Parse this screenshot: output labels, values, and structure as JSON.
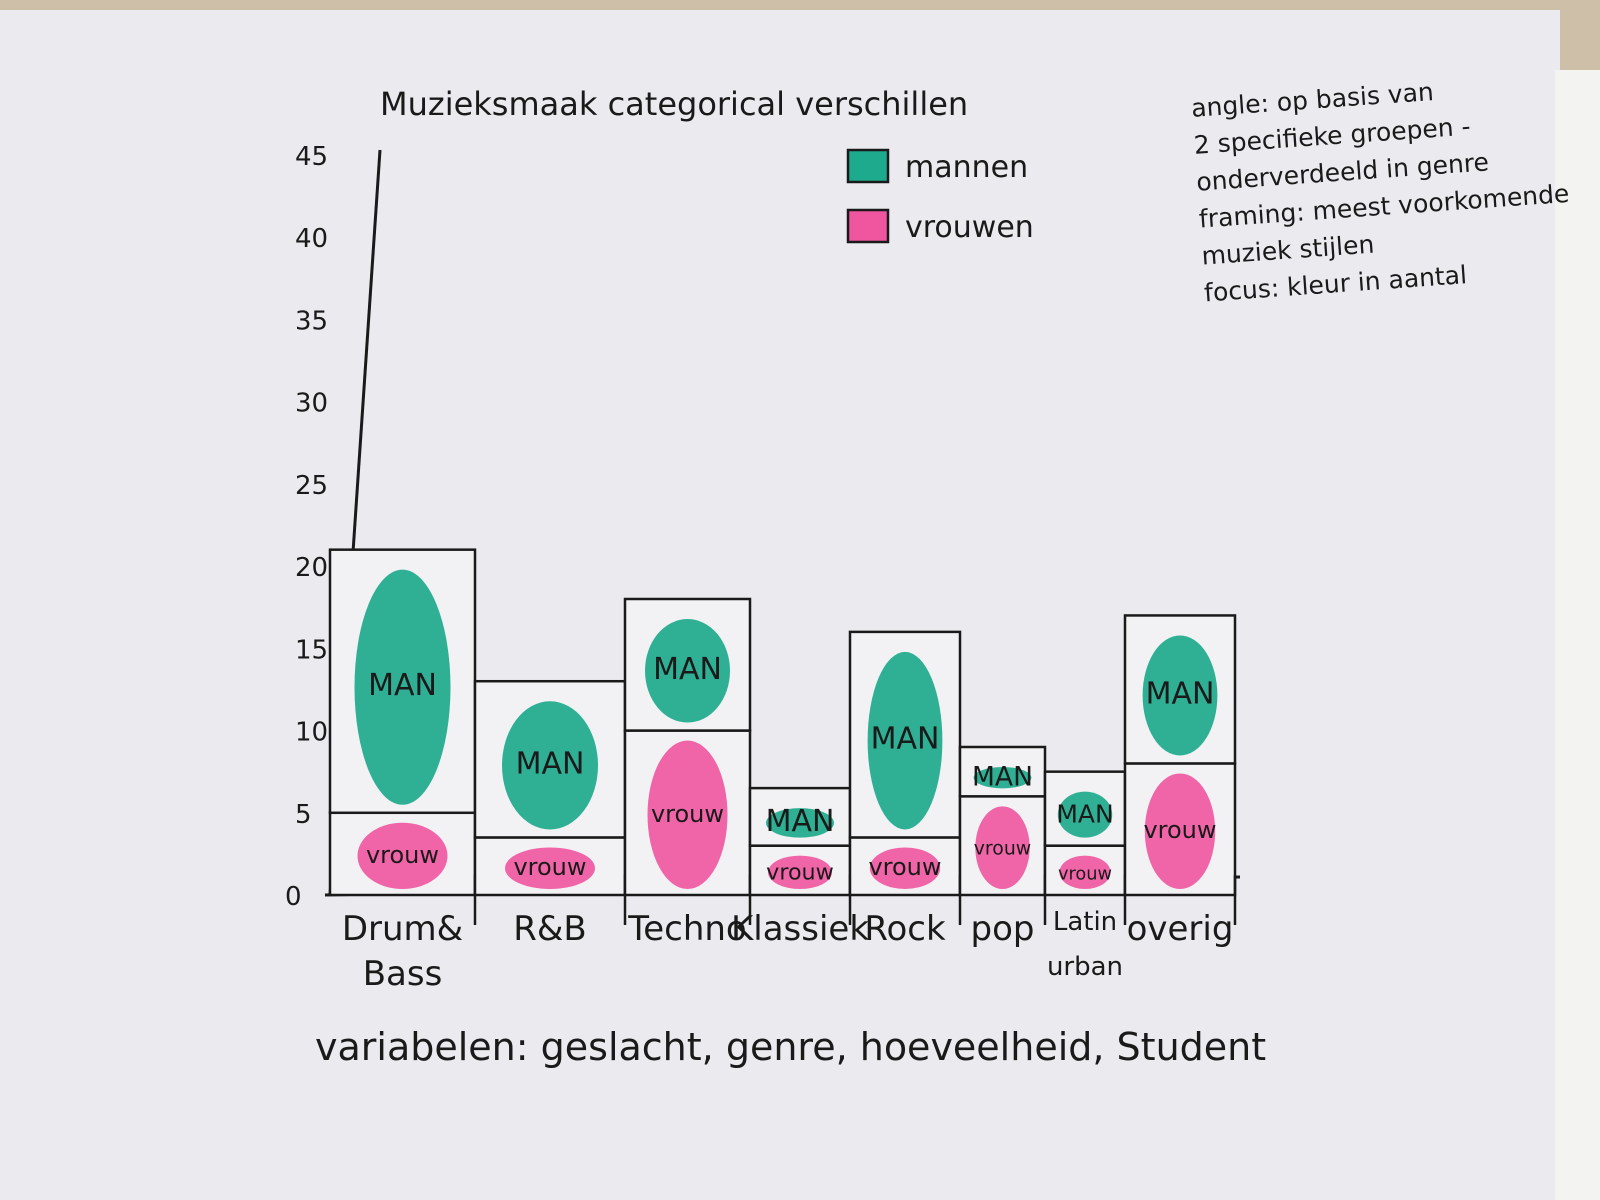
{
  "chart_data": {
    "type": "bar",
    "stacked": true,
    "title": "Muzieksmaak categorical verschillen",
    "categories": [
      "Drum& Bass",
      "R&B",
      "Techno",
      "Klassiek",
      "Rock",
      "pop",
      "Latin urban",
      "overig"
    ],
    "categories_display": [
      [
        "Drum&",
        "Bass"
      ],
      [
        "R&B"
      ],
      [
        "Techno"
      ],
      [
        "Klassiek"
      ],
      [
        "Rock"
      ],
      [
        "pop"
      ],
      [
        "Latin",
        "urban"
      ],
      [
        "overig"
      ]
    ],
    "series": [
      {
        "name": "vrouwen",
        "bar_label": "vrouw",
        "color": "#f0559f",
        "values": [
          5,
          3.5,
          10,
          3,
          3.5,
          6,
          3,
          8
        ]
      },
      {
        "name": "mannen",
        "bar_label": "MAN",
        "color": "#1eaa8c",
        "values": [
          16,
          9.5,
          8,
          3.5,
          12.5,
          3,
          4.5,
          9
        ]
      }
    ],
    "ylim": [
      0,
      45
    ],
    "yticks": [
      0,
      5,
      10,
      15,
      20,
      25,
      30,
      35,
      40,
      45
    ],
    "xlabel": "",
    "ylabel": "",
    "legend": {
      "position": "top-right",
      "items": [
        "mannen",
        "vrouwen"
      ]
    },
    "grid": false
  },
  "annotations": {
    "notes": [
      "angle: op basis van",
      "2 specifieke groepen -",
      "onderverdeeld in genre",
      "framing: meest voorkomende",
      "muziek stijlen",
      "focus: kleur in aantal"
    ],
    "variables": "variabelen: geslacht, genre, hoeveelheid, Student"
  }
}
